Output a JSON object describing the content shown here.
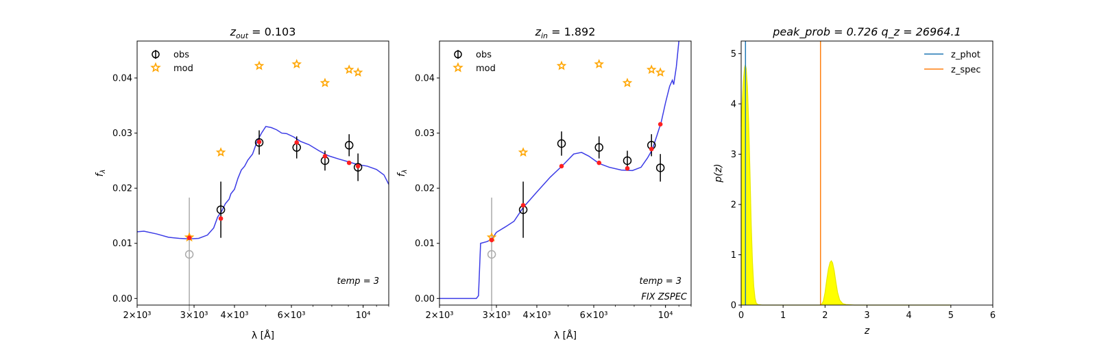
{
  "chart_data": [
    {
      "type": "scatter",
      "title": "z_out = 0.103",
      "title_parts": {
        "base": "z",
        "sub": "out",
        "rest": " = 0.103"
      },
      "xlabel": "λ [Å]",
      "ylabel": "fλ",
      "ylabel_parts": {
        "base": "f",
        "sub": "λ"
      },
      "xscale": "log",
      "xlim": [
        2000,
        12000
      ],
      "ylim": [
        -0.0012,
        0.0467
      ],
      "xticks": [
        {
          "value": 2000,
          "label": "2×10³"
        },
        {
          "value": 3000,
          "label": "3×10³"
        },
        {
          "value": 4000,
          "label": "4×10³"
        },
        {
          "value": 6000,
          "label": "6×10³"
        },
        {
          "value": 10000,
          "label": "10⁴"
        }
      ],
      "yticks": [
        {
          "value": 0.0,
          "label": "0.00"
        },
        {
          "value": 0.01,
          "label": "0.01"
        },
        {
          "value": 0.02,
          "label": "0.02"
        },
        {
          "value": 0.03,
          "label": "0.03"
        },
        {
          "value": 0.04,
          "label": "0.04"
        }
      ],
      "legend": {
        "position": "top-left",
        "entries": [
          "obs",
          "mod"
        ]
      },
      "annotations": [
        "temp = 3"
      ],
      "series": [
        {
          "name": "obs",
          "marker": "open-circle-errorbar",
          "color": "#000000",
          "points": [
            {
              "x": 3630,
              "y": 0.0161,
              "err": 0.0051
            },
            {
              "x": 4770,
              "y": 0.0283,
              "err": 0.0022
            },
            {
              "x": 6230,
              "y": 0.0274,
              "err": 0.002
            },
            {
              "x": 7620,
              "y": 0.025,
              "err": 0.0018
            },
            {
              "x": 9050,
              "y": 0.0278,
              "err": 0.002
            },
            {
              "x": 9640,
              "y": 0.0238,
              "err": 0.0025
            }
          ],
          "masked": [
            {
              "x": 2900,
              "y": 0.008,
              "err": 0.0103,
              "color": "#aaaaaa"
            }
          ]
        },
        {
          "name": "mod",
          "marker": "star",
          "color": "#ffa500",
          "points": [
            {
              "x": 2900,
              "y": 0.0111
            },
            {
              "x": 3630,
              "y": 0.0265
            },
            {
              "x": 4770,
              "y": 0.0422
            },
            {
              "x": 6230,
              "y": 0.0425
            },
            {
              "x": 7620,
              "y": 0.0391
            },
            {
              "x": 9050,
              "y": 0.0415
            },
            {
              "x": 9640,
              "y": 0.041
            }
          ]
        },
        {
          "name": "fit",
          "marker": "dot",
          "color": "#ff2020",
          "points": [
            {
              "x": 2900,
              "y": 0.011
            },
            {
              "x": 3630,
              "y": 0.0145
            },
            {
              "x": 4770,
              "y": 0.0284
            },
            {
              "x": 6230,
              "y": 0.0283
            },
            {
              "x": 7620,
              "y": 0.0258
            },
            {
              "x": 9050,
              "y": 0.0246
            },
            {
              "x": 9640,
              "y": 0.024
            }
          ]
        },
        {
          "name": "sed",
          "type": "line",
          "color": "#3a3ae6",
          "points": [
            [
              2000,
              0.0121
            ],
            [
              2100,
              0.0122
            ],
            [
              2300,
              0.0117
            ],
            [
              2500,
              0.0111
            ],
            [
              2700,
              0.0109
            ],
            [
              2900,
              0.0108
            ],
            [
              3100,
              0.0109
            ],
            [
              3300,
              0.0115
            ],
            [
              3450,
              0.0128
            ],
            [
              3550,
              0.0148
            ],
            [
              3650,
              0.0158
            ],
            [
              3750,
              0.0172
            ],
            [
              3850,
              0.018
            ],
            [
              3900,
              0.019
            ],
            [
              4000,
              0.0198
            ],
            [
              4100,
              0.0218
            ],
            [
              4200,
              0.0233
            ],
            [
              4300,
              0.024
            ],
            [
              4400,
              0.0251
            ],
            [
              4550,
              0.0262
            ],
            [
              4700,
              0.0285
            ],
            [
              4850,
              0.03
            ],
            [
              5000,
              0.0312
            ],
            [
              5200,
              0.031
            ],
            [
              5400,
              0.0306
            ],
            [
              5600,
              0.03
            ],
            [
              5800,
              0.0299
            ],
            [
              6100,
              0.0293
            ],
            [
              6400,
              0.0285
            ],
            [
              6800,
              0.0279
            ],
            [
              7300,
              0.0268
            ],
            [
              7800,
              0.0259
            ],
            [
              8400,
              0.0253
            ],
            [
              9000,
              0.0248
            ],
            [
              9600,
              0.0243
            ],
            [
              10300,
              0.024
            ],
            [
              11000,
              0.0234
            ],
            [
              11600,
              0.0224
            ],
            [
              12000,
              0.0207
            ]
          ]
        }
      ]
    },
    {
      "type": "scatter",
      "title": "z_in = 1.892",
      "title_parts": {
        "base": "z",
        "sub": "in",
        "rest": " = 1.892"
      },
      "xlabel": "λ [Å]",
      "ylabel": "fλ",
      "ylabel_parts": {
        "base": "f",
        "sub": "λ"
      },
      "xscale": "log",
      "xlim": [
        2000,
        12000
      ],
      "ylim": [
        -0.0012,
        0.0467
      ],
      "xticks": [
        {
          "value": 2000,
          "label": "2×10³"
        },
        {
          "value": 3000,
          "label": "3×10³"
        },
        {
          "value": 4000,
          "label": "4×10³"
        },
        {
          "value": 6000,
          "label": "6×10³"
        },
        {
          "value": 10000,
          "label": "10⁴"
        }
      ],
      "yticks": [
        {
          "value": 0.0,
          "label": "0.00"
        },
        {
          "value": 0.01,
          "label": "0.01"
        },
        {
          "value": 0.02,
          "label": "0.02"
        },
        {
          "value": 0.03,
          "label": "0.03"
        },
        {
          "value": 0.04,
          "label": "0.04"
        }
      ],
      "legend": {
        "position": "top-left",
        "entries": [
          "obs",
          "mod"
        ]
      },
      "annotations": [
        "temp = 3",
        "FIX ZSPEC"
      ],
      "series": [
        {
          "name": "obs",
          "marker": "open-circle-errorbar",
          "color": "#000000",
          "points": [
            {
              "x": 3630,
              "y": 0.0161,
              "err": 0.0051
            },
            {
              "x": 4770,
              "y": 0.0281,
              "err": 0.0022
            },
            {
              "x": 6230,
              "y": 0.0274,
              "err": 0.002
            },
            {
              "x": 7620,
              "y": 0.025,
              "err": 0.0018
            },
            {
              "x": 9050,
              "y": 0.0278,
              "err": 0.002
            },
            {
              "x": 9640,
              "y": 0.0237,
              "err": 0.0025
            }
          ],
          "masked": [
            {
              "x": 2900,
              "y": 0.008,
              "err": 0.0103,
              "color": "#aaaaaa"
            }
          ]
        },
        {
          "name": "mod",
          "marker": "star",
          "color": "#ffa500",
          "points": [
            {
              "x": 2900,
              "y": 0.0111
            },
            {
              "x": 3630,
              "y": 0.0265
            },
            {
              "x": 4770,
              "y": 0.0422
            },
            {
              "x": 6230,
              "y": 0.0425
            },
            {
              "x": 7620,
              "y": 0.0391
            },
            {
              "x": 9050,
              "y": 0.0415
            },
            {
              "x": 9640,
              "y": 0.041
            }
          ]
        },
        {
          "name": "fit",
          "marker": "dot",
          "color": "#ff2020",
          "points": [
            {
              "x": 2900,
              "y": 0.0106
            },
            {
              "x": 3630,
              "y": 0.0169
            },
            {
              "x": 4770,
              "y": 0.024
            },
            {
              "x": 6230,
              "y": 0.0246
            },
            {
              "x": 7620,
              "y": 0.0236
            },
            {
              "x": 9050,
              "y": 0.0271
            },
            {
              "x": 9640,
              "y": 0.0316
            }
          ]
        },
        {
          "name": "sed",
          "type": "line",
          "color": "#3a3ae6",
          "points": [
            [
              2000,
              0.0
            ],
            [
              2600,
              0.0
            ],
            [
              2640,
              0.0005
            ],
            [
              2680,
              0.01
            ],
            [
              2800,
              0.0103
            ],
            [
              2900,
              0.0107
            ],
            [
              3000,
              0.012
            ],
            [
              3200,
              0.013
            ],
            [
              3400,
              0.014
            ],
            [
              3630,
              0.0165
            ],
            [
              4000,
              0.0193
            ],
            [
              4400,
              0.022
            ],
            [
              4800,
              0.0241
            ],
            [
              5200,
              0.0262
            ],
            [
              5500,
              0.0265
            ],
            [
              5800,
              0.0258
            ],
            [
              6230,
              0.0245
            ],
            [
              6700,
              0.0238
            ],
            [
              7300,
              0.0233
            ],
            [
              7900,
              0.0232
            ],
            [
              8400,
              0.0238
            ],
            [
              8800,
              0.0255
            ],
            [
              9100,
              0.027
            ],
            [
              9400,
              0.0295
            ],
            [
              9700,
              0.032
            ],
            [
              10000,
              0.0355
            ],
            [
              10300,
              0.0385
            ],
            [
              10500,
              0.0396
            ],
            [
              10600,
              0.0388
            ],
            [
              10800,
              0.042
            ],
            [
              11000,
              0.0467
            ]
          ]
        }
      ]
    },
    {
      "type": "line",
      "title": "peak_prob = 0.726      q_z = 26964.1",
      "xlabel": "z",
      "ylabel": "p(z)",
      "xlim": [
        0,
        6
      ],
      "ylim": [
        0,
        5.25
      ],
      "xticks": [
        0,
        1,
        2,
        3,
        4,
        5,
        6
      ],
      "yticks": [
        0,
        1,
        2,
        3,
        4,
        5
      ],
      "legend": {
        "position": "top-right",
        "entries": [
          "z_phot",
          "z_spec"
        ]
      },
      "vlines": [
        {
          "name": "z_phot",
          "x": 0.103,
          "color": "#1f77b4"
        },
        {
          "name": "z_spec",
          "x": 1.892,
          "color": "#ff7f0e"
        }
      ],
      "curve": {
        "line_color": "#e8e800",
        "fill_color": "#ffff00",
        "points": [
          [
            0.0,
            3.55
          ],
          [
            0.02,
            3.95
          ],
          [
            0.05,
            4.45
          ],
          [
            0.08,
            4.72
          ],
          [
            0.1,
            4.78
          ],
          [
            0.12,
            4.7
          ],
          [
            0.15,
            4.35
          ],
          [
            0.18,
            3.6
          ],
          [
            0.21,
            2.65
          ],
          [
            0.24,
            1.6
          ],
          [
            0.27,
            0.85
          ],
          [
            0.3,
            0.38
          ],
          [
            0.33,
            0.14
          ],
          [
            0.36,
            0.04
          ],
          [
            0.4,
            0.01
          ],
          [
            0.5,
            0.0
          ],
          [
            1.89,
            0.0
          ],
          [
            1.92,
            0.02
          ],
          [
            1.96,
            0.08
          ],
          [
            2.0,
            0.25
          ],
          [
            2.04,
            0.5
          ],
          [
            2.08,
            0.72
          ],
          [
            2.12,
            0.85
          ],
          [
            2.15,
            0.88
          ],
          [
            2.18,
            0.84
          ],
          [
            2.22,
            0.68
          ],
          [
            2.26,
            0.45
          ],
          [
            2.3,
            0.25
          ],
          [
            2.35,
            0.1
          ],
          [
            2.42,
            0.03
          ],
          [
            2.5,
            0.01
          ],
          [
            2.7,
            0.0
          ],
          [
            5.0,
            0.0
          ]
        ]
      }
    }
  ]
}
